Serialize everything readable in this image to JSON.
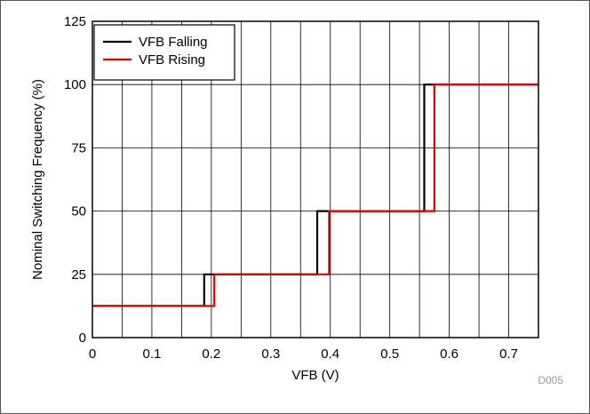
{
  "chart_data": {
    "type": "line",
    "xlabel": "VFB (V)",
    "ylabel": "Nominal Switching Frequency (%)",
    "xlim": [
      0,
      0.75
    ],
    "ylim": [
      0,
      125
    ],
    "x_ticks": [
      0,
      0.1,
      0.2,
      0.3,
      0.4,
      0.5,
      0.6,
      0.7
    ],
    "x_tick_labels": [
      "0",
      "0.1",
      "0.2",
      "0.3",
      "0.4",
      "0.5",
      "0.6",
      "0.7"
    ],
    "x_minor_step": 0.05,
    "y_ticks": [
      0,
      25,
      50,
      75,
      100,
      125
    ],
    "y_tick_labels": [
      "0",
      "25",
      "50",
      "75",
      "100",
      "125"
    ],
    "grid": true,
    "legend_position": "top-left",
    "figure_id": "D005",
    "series": [
      {
        "name": "VFB Falling",
        "color": "#000000",
        "x": [
          0,
          0.188,
          0.188,
          0.378,
          0.378,
          0.558,
          0.558,
          0.75
        ],
        "y": [
          12.5,
          12.5,
          25,
          25,
          50,
          50,
          100,
          100
        ]
      },
      {
        "name": "VFB Rising",
        "color": "#dd0000",
        "x": [
          0,
          0.205,
          0.205,
          0.398,
          0.398,
          0.575,
          0.575,
          0.75
        ],
        "y": [
          12.5,
          12.5,
          25,
          25,
          50,
          50,
          100,
          100
        ]
      }
    ]
  }
}
